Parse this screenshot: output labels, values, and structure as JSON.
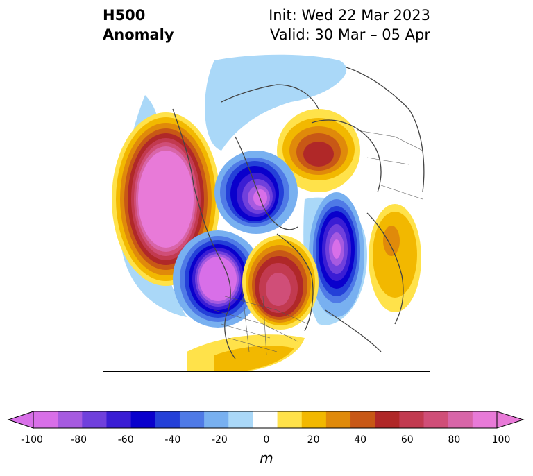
{
  "title": {
    "left_line1": "H500",
    "left_line2": "Anomaly",
    "right_line1": "Init: Wed 22 Mar 2023",
    "right_line2": "Valid: 30 Mar – 05 Apr"
  },
  "colorbar": {
    "units": "m",
    "ticks": [
      "-100",
      "-80",
      "-60",
      "-40",
      "-20",
      "0",
      "20",
      "40",
      "60",
      "80",
      "100"
    ],
    "levels": [
      -100,
      -90,
      -80,
      -70,
      -60,
      -50,
      -40,
      -30,
      -20,
      -10,
      10,
      20,
      30,
      40,
      50,
      60,
      70,
      80,
      90,
      100
    ],
    "colors": [
      "#d86fe8",
      "#a65ae0",
      "#7040dc",
      "#3a1dd4",
      "#0a00cc",
      "#2440d8",
      "#4f7ae6",
      "#78b0f0",
      "#aad8f8",
      "#ffffff",
      "#ffe24a",
      "#f2b800",
      "#e08a0a",
      "#c85816",
      "#b02828",
      "#c23a50",
      "#d04e78",
      "#d865a8",
      "#e87ad8"
    ]
  }
}
